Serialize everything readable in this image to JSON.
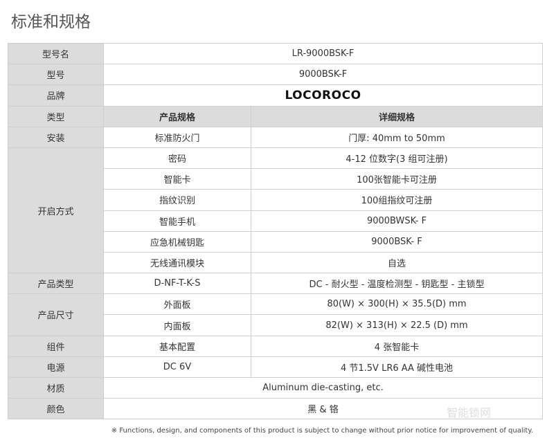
{
  "title": "标准和规格",
  "model_name": {
    "label": "型号名",
    "value": "LR-9000BSK-F"
  },
  "model": {
    "label": "型号",
    "value": "9000BSK-F"
  },
  "brand": {
    "label": "品牌",
    "value": "LOCOROCO"
  },
  "header": {
    "label": "类型",
    "col2": "产品规格",
    "col3": "详细规格"
  },
  "install": {
    "label": "安装",
    "col2": "标准防火门",
    "col3": "门厚: 40mm to 50mm"
  },
  "open": {
    "label": "开启方式",
    "rows": [
      {
        "col2": "密码",
        "col3": "4-12 位数字(3 组可注册)"
      },
      {
        "col2": "智能卡",
        "col3": "100张智能卡可注册"
      },
      {
        "col2": "指纹识别",
        "col3": "100组指纹可注册"
      },
      {
        "col2": "智能手机",
        "col3": "9000BWSK- F"
      },
      {
        "col2": "应急机械钥匙",
        "col3": "9000BSK- F"
      },
      {
        "col2": "无线通讯模块",
        "col3": "自选"
      }
    ]
  },
  "type": {
    "label": "产品类型",
    "col2": "D-NF-T-K-S",
    "col3": "DC - 耐火型 - 温度检测型 - 钥匙型 - 主锁型"
  },
  "size": {
    "label": "产品尺寸",
    "rows": [
      {
        "col2": "外面板",
        "col3": "80(W) × 300(H) × 35.5(D) mm"
      },
      {
        "col2": "内面板",
        "col3": "82(W) × 313(H) × 22.5 (D) mm"
      }
    ]
  },
  "parts": {
    "label": "组件",
    "col2": "基本配置",
    "col3": "4 张智能卡"
  },
  "power": {
    "label": "电源",
    "col2": "DC 6V",
    "col3": "4 节1.5V LR6 AA 碱性电池"
  },
  "material": {
    "label": "材质",
    "value": "Aluminum die-casting, etc."
  },
  "color": {
    "label": "颜色",
    "value": "黑 & 铬"
  },
  "note": "※ Functions, design, and components of this product is subject to change without prior notice for improvement of quality.",
  "watermark": "智能锁网"
}
